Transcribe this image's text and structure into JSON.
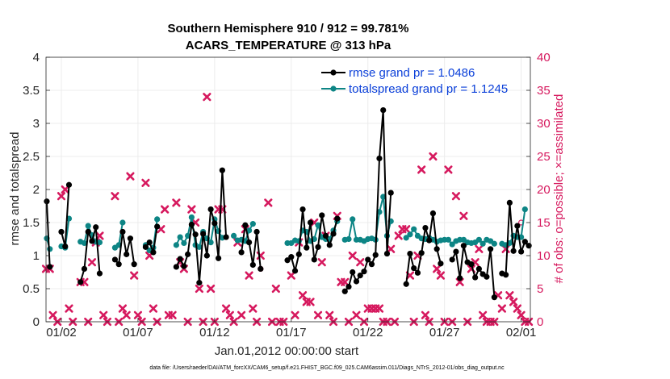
{
  "chart_data": {
    "type": "line",
    "title": "Southern Hemisphere 910 / 912 = 99.781%",
    "subtitle": "ACARS_TEMPERATURE @ 313 hPa",
    "xlabel": "Jan.01,2012 00:00:00 start",
    "ylabel_left": "rmse and totalspread",
    "ylabel_right": "# of obs: o=possible; ×=assimilated",
    "ylim_left": [
      0,
      4
    ],
    "ylim_right": [
      0,
      40
    ],
    "xlim": [
      0,
      31.6
    ],
    "yticks_left": [
      "0",
      "0.5",
      "1",
      "1.5",
      "2",
      "2.5",
      "3",
      "3.5",
      "4"
    ],
    "yticks_right": [
      "0",
      "5",
      "10",
      "15",
      "20",
      "25",
      "30",
      "35",
      "40"
    ],
    "xticks": [
      {
        "v": 1,
        "label": "01/02"
      },
      {
        "v": 6,
        "label": "01/07"
      },
      {
        "v": 11,
        "label": "01/12"
      },
      {
        "v": 16,
        "label": "01/17"
      },
      {
        "v": 21,
        "label": "01/22"
      },
      {
        "v": 26,
        "label": "01/27"
      },
      {
        "v": 31,
        "label": "02/01"
      }
    ],
    "legend": {
      "placement": "top-right",
      "entries": [
        "rmse grand pr = 1.0486",
        "totalspread grand pr = 1.1245"
      ]
    },
    "colors": {
      "rmse": "#000000",
      "spread": "#0d8585",
      "obs": "#d6195e",
      "legend_text": "#0a3fd9",
      "grid": "#ececec"
    },
    "rmse_segments": [
      [
        [
          0.05,
          1.82
        ],
        [
          0.25,
          0.83
        ]
      ],
      [
        [
          1.0,
          1.36
        ],
        [
          1.25,
          1.14
        ],
        [
          1.5,
          2.07
        ]
      ],
      [
        [
          2.25,
          0.6
        ],
        [
          2.5,
          0.8
        ],
        [
          2.75,
          1.36
        ],
        [
          3.0,
          1.22
        ],
        [
          3.25,
          1.43
        ],
        [
          3.5,
          0.73
        ]
      ],
      [
        [
          4.5,
          0.94
        ],
        [
          4.75,
          0.87
        ],
        [
          5.0,
          1.36
        ],
        [
          5.25,
          1.02
        ],
        [
          5.5,
          1.26
        ],
        [
          5.75,
          0.87
        ]
      ],
      [
        [
          6.5,
          1.13
        ],
        [
          6.75,
          1.2
        ],
        [
          7.0,
          1.05
        ],
        [
          7.25,
          1.44
        ]
      ],
      [
        [
          8.5,
          0.83
        ],
        [
          8.75,
          0.95
        ],
        [
          9.0,
          0.84
        ],
        [
          9.25,
          1.02
        ],
        [
          9.5,
          1.47
        ],
        [
          9.75,
          1.32
        ],
        [
          10.0,
          0.59
        ],
        [
          10.25,
          1.33
        ],
        [
          10.5,
          1.0
        ],
        [
          10.75,
          1.7
        ],
        [
          11.0,
          1.49
        ],
        [
          11.25,
          0.96
        ],
        [
          11.5,
          2.29
        ],
        [
          11.75,
          1.28
        ]
      ],
      [
        [
          12.75,
          1.05
        ],
        [
          13.0,
          1.46
        ],
        [
          13.25,
          1.2
        ],
        [
          13.5,
          0.86
        ],
        [
          13.75,
          1.36
        ],
        [
          14.0,
          0.8
        ]
      ],
      [
        [
          15.75,
          0.93
        ],
        [
          16.0,
          0.98
        ],
        [
          16.25,
          0.77
        ],
        [
          16.5,
          1.02
        ],
        [
          16.75,
          1.7
        ],
        [
          17.0,
          1.12
        ],
        [
          17.25,
          1.5
        ],
        [
          17.5,
          0.94
        ],
        [
          17.75,
          1.13
        ],
        [
          18.0,
          1.61
        ],
        [
          18.25,
          1.3
        ],
        [
          18.5,
          1.16
        ],
        [
          18.75,
          1.33
        ],
        [
          19.0,
          1.56
        ]
      ],
      [
        [
          19.5,
          0.46
        ],
        [
          19.75,
          0.53
        ],
        [
          20.0,
          0.75
        ],
        [
          20.25,
          0.61
        ],
        [
          20.5,
          0.7
        ],
        [
          20.75,
          0.76
        ],
        [
          21.0,
          0.94
        ],
        [
          21.25,
          0.87
        ],
        [
          21.5,
          1.01
        ],
        [
          21.75,
          2.47
        ],
        [
          22.0,
          3.2
        ],
        [
          22.25,
          1.03
        ],
        [
          22.5,
          1.95
        ]
      ],
      [
        [
          23.5,
          0.57
        ],
        [
          23.75,
          1.03
        ],
        [
          24.0,
          0.81
        ],
        [
          24.25,
          0.74
        ],
        [
          24.5,
          1.04
        ],
        [
          24.75,
          1.42
        ],
        [
          25.0,
          1.23
        ],
        [
          25.25,
          1.64
        ],
        [
          25.5,
          1.1
        ],
        [
          25.75,
          0.88
        ]
      ],
      [
        [
          26.5,
          0.94
        ],
        [
          26.75,
          1.06
        ],
        [
          27.0,
          0.66
        ],
        [
          27.25,
          1.15
        ],
        [
          27.5,
          0.9
        ],
        [
          27.75,
          0.87
        ],
        [
          28.0,
          0.67
        ],
        [
          28.25,
          0.8
        ],
        [
          28.5,
          0.72
        ],
        [
          28.75,
          0.68
        ],
        [
          29.0,
          1.1
        ],
        [
          29.25,
          0.37
        ]
      ],
      [
        [
          29.75,
          0.73
        ],
        [
          30.0,
          0.71
        ],
        [
          30.25,
          1.8
        ],
        [
          30.5,
          1.07
        ],
        [
          30.75,
          1.45
        ],
        [
          31.0,
          1.06
        ],
        [
          31.25,
          1.21
        ],
        [
          31.5,
          1.15
        ]
      ]
    ],
    "spread_segments": [
      [
        [
          0.05,
          1.26
        ],
        [
          0.25,
          1.1
        ]
      ],
      [
        [
          1.0,
          1.14
        ],
        [
          1.25,
          1.12
        ],
        [
          1.5,
          1.56
        ]
      ],
      [
        [
          2.25,
          1.21
        ],
        [
          2.5,
          1.19
        ],
        [
          2.75,
          1.45
        ],
        [
          3.0,
          1.31
        ],
        [
          3.25,
          1.21
        ],
        [
          3.5,
          1.2
        ]
      ],
      [
        [
          4.5,
          1.12
        ],
        [
          4.75,
          1.16
        ],
        [
          5.0,
          1.5
        ]
      ],
      [
        [
          6.5,
          1.16
        ],
        [
          6.75,
          1.08
        ],
        [
          7.0,
          1.12
        ],
        [
          7.25,
          1.55
        ]
      ],
      [
        [
          8.5,
          1.16
        ],
        [
          8.75,
          1.28
        ],
        [
          9.0,
          1.19
        ],
        [
          9.25,
          1.3
        ],
        [
          9.5,
          1.58
        ],
        [
          9.75,
          1.16
        ],
        [
          10.0,
          1.13
        ],
        [
          10.25,
          1.36
        ],
        [
          10.5,
          1.26
        ],
        [
          10.75,
          1.2
        ],
        [
          11.0,
          1.55
        ],
        [
          11.25,
          1.37
        ],
        [
          11.5,
          1.27
        ]
      ],
      [
        [
          12.25,
          1.3
        ],
        [
          12.5,
          1.23
        ],
        [
          12.75,
          1.24
        ],
        [
          13.0,
          1.22
        ],
        [
          13.25,
          1.38
        ],
        [
          13.5,
          1.48
        ]
      ],
      [
        [
          15.75,
          1.19
        ],
        [
          16.0,
          1.19
        ],
        [
          16.25,
          1.23
        ],
        [
          16.5,
          1.22
        ],
        [
          16.75,
          1.38
        ],
        [
          17.0,
          1.36
        ],
        [
          17.25,
          1.22
        ],
        [
          17.5,
          1.25
        ],
        [
          17.75,
          1.46
        ],
        [
          18.0,
          1.28
        ],
        [
          18.25,
          1.25
        ],
        [
          18.5,
          1.25
        ],
        [
          18.75,
          1.38
        ],
        [
          19.0,
          1.52
        ]
      ],
      [
        [
          19.5,
          1.24
        ],
        [
          19.75,
          1.25
        ],
        [
          20.0,
          1.55
        ],
        [
          20.25,
          1.24
        ],
        [
          20.5,
          1.24
        ],
        [
          20.75,
          1.22
        ],
        [
          21.0,
          1.25
        ],
        [
          21.25,
          1.26
        ],
        [
          21.5,
          1.24
        ],
        [
          21.75,
          1.66
        ],
        [
          22.0,
          1.89
        ],
        [
          22.25,
          1.3
        ],
        [
          22.5,
          1.52
        ]
      ],
      [
        [
          23.5,
          1.27
        ],
        [
          23.75,
          1.32
        ],
        [
          24.0,
          1.4
        ],
        [
          24.25,
          1.3
        ],
        [
          24.5,
          1.26
        ],
        [
          24.75,
          1.25
        ],
        [
          25.0,
          1.27
        ],
        [
          25.25,
          1.24
        ],
        [
          25.5,
          1.21
        ],
        [
          25.75,
          1.23
        ]
      ],
      [
        [
          26.0,
          1.24
        ],
        [
          26.25,
          1.24
        ],
        [
          26.5,
          1.17
        ],
        [
          26.75,
          1.22
        ],
        [
          27.0,
          1.24
        ],
        [
          27.25,
          1.24
        ],
        [
          27.5,
          1.2
        ],
        [
          27.75,
          1.19
        ],
        [
          28.0,
          1.2
        ],
        [
          28.25,
          1.24
        ],
        [
          28.5,
          1.18
        ],
        [
          28.75,
          1.24
        ],
        [
          29.0,
          1.22
        ],
        [
          29.25,
          1.18
        ]
      ],
      [
        [
          29.75,
          1.18
        ],
        [
          30.0,
          1.16
        ],
        [
          30.25,
          1.19
        ],
        [
          30.5,
          1.3
        ],
        [
          30.75,
          1.28
        ],
        [
          31.0,
          1.28
        ],
        [
          31.25,
          1.7
        ]
      ]
    ],
    "obs_points": [
      [
        0.0,
        8
      ],
      [
        0.25,
        8
      ],
      [
        0.45,
        1
      ],
      [
        0.75,
        0
      ],
      [
        1.0,
        19
      ],
      [
        1.25,
        20
      ],
      [
        1.5,
        2
      ],
      [
        1.75,
        0
      ],
      [
        2.25,
        6
      ],
      [
        2.5,
        6
      ],
      [
        2.75,
        0
      ],
      [
        3.0,
        9
      ],
      [
        3.25,
        12
      ],
      [
        3.5,
        13
      ],
      [
        3.75,
        1
      ],
      [
        4.0,
        0
      ],
      [
        4.5,
        19
      ],
      [
        4.75,
        0
      ],
      [
        5.0,
        2
      ],
      [
        5.25,
        1
      ],
      [
        5.5,
        22
      ],
      [
        5.75,
        7
      ],
      [
        6.0,
        1
      ],
      [
        6.25,
        0
      ],
      [
        6.5,
        21
      ],
      [
        6.75,
        10
      ],
      [
        7.0,
        2
      ],
      [
        7.25,
        0
      ],
      [
        7.5,
        14
      ],
      [
        7.75,
        17
      ],
      [
        8.0,
        1
      ],
      [
        8.25,
        1
      ],
      [
        8.5,
        18
      ],
      [
        8.75,
        9
      ],
      [
        9.0,
        8
      ],
      [
        9.25,
        0
      ],
      [
        9.5,
        17
      ],
      [
        9.75,
        15
      ],
      [
        10.0,
        5
      ],
      [
        10.25,
        0
      ],
      [
        10.5,
        34
      ],
      [
        10.75,
        5
      ],
      [
        11.0,
        0
      ],
      [
        11.25,
        17
      ],
      [
        11.5,
        17
      ],
      [
        11.75,
        2
      ],
      [
        12.0,
        1
      ],
      [
        12.25,
        0
      ],
      [
        12.5,
        12
      ],
      [
        12.75,
        1
      ],
      [
        13.0,
        14
      ],
      [
        13.25,
        7
      ],
      [
        13.5,
        2
      ],
      [
        13.75,
        0
      ],
      [
        14.0,
        10
      ],
      [
        14.5,
        18
      ],
      [
        14.75,
        0
      ],
      [
        15.0,
        5
      ],
      [
        15.25,
        0
      ],
      [
        15.5,
        0
      ],
      [
        16.0,
        7
      ],
      [
        16.25,
        1
      ],
      [
        16.5,
        12
      ],
      [
        16.75,
        4
      ],
      [
        17.0,
        3
      ],
      [
        17.25,
        3
      ],
      [
        17.5,
        15
      ],
      [
        17.75,
        1
      ],
      [
        18.0,
        9
      ],
      [
        18.25,
        13
      ],
      [
        18.5,
        1
      ],
      [
        18.75,
        0
      ],
      [
        19.0,
        16
      ],
      [
        19.25,
        6
      ],
      [
        19.5,
        6
      ],
      [
        19.75,
        0
      ],
      [
        20.0,
        10
      ],
      [
        20.25,
        1
      ],
      [
        20.5,
        9
      ],
      [
        20.75,
        0
      ],
      [
        21.0,
        2
      ],
      [
        21.25,
        2
      ],
      [
        21.5,
        2
      ],
      [
        21.75,
        2
      ],
      [
        22.0,
        0
      ],
      [
        22.25,
        0
      ],
      [
        22.5,
        11
      ],
      [
        22.75,
        0
      ],
      [
        23.0,
        13
      ],
      [
        23.25,
        14
      ],
      [
        23.5,
        14
      ],
      [
        23.75,
        7
      ],
      [
        24.0,
        0
      ],
      [
        24.25,
        10
      ],
      [
        24.5,
        23
      ],
      [
        24.75,
        1
      ],
      [
        25.0,
        0
      ],
      [
        25.25,
        25
      ],
      [
        25.5,
        8
      ],
      [
        25.75,
        7
      ],
      [
        26.0,
        0
      ],
      [
        26.25,
        23
      ],
      [
        26.5,
        0
      ],
      [
        26.75,
        19
      ],
      [
        27.0,
        6
      ],
      [
        27.25,
        16
      ],
      [
        27.5,
        0
      ],
      [
        27.75,
        8
      ],
      [
        28.0,
        9
      ],
      [
        28.25,
        11
      ],
      [
        28.5,
        1
      ],
      [
        28.75,
        0
      ],
      [
        29.0,
        0
      ],
      [
        29.25,
        0
      ],
      [
        29.5,
        4
      ],
      [
        29.75,
        2
      ],
      [
        30.0,
        11
      ],
      [
        30.25,
        4
      ],
      [
        30.5,
        3
      ],
      [
        30.75,
        2
      ],
      [
        31.0,
        1
      ],
      [
        31.25,
        0
      ],
      [
        31.5,
        0
      ]
    ],
    "possible_points": [
      [
        14.0,
        8.0
      ],
      [
        31.0,
        15.0
      ]
    ]
  },
  "footer": "data file: /Users/raeder/DAI/ATM_forcXX/CAM6_setup/f.e21.FHIST_BGC.f09_025.CAM6assim.011/Diags_NTrS_2012-01/obs_diag_output.nc"
}
